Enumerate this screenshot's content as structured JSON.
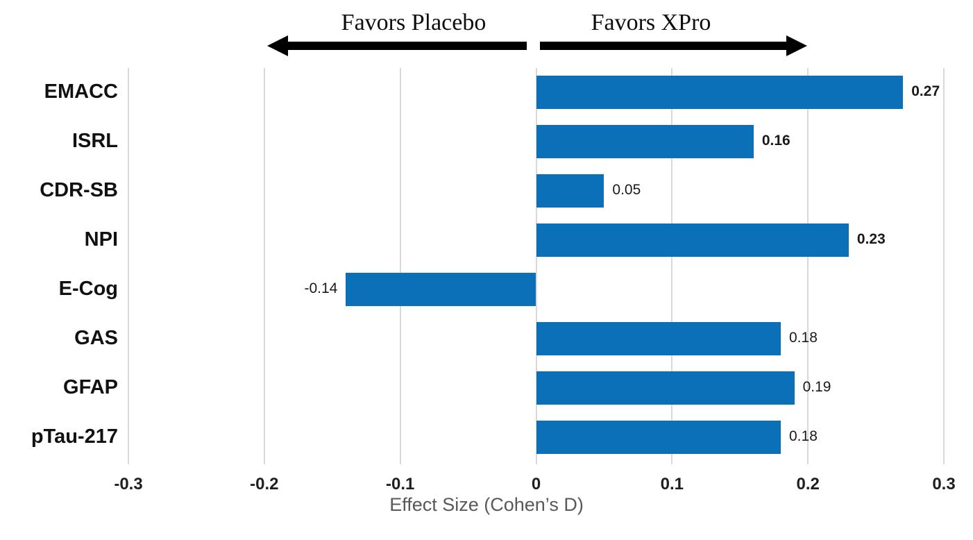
{
  "header": {
    "left_label": "Favors Placebo",
    "right_label": "Favors XPro"
  },
  "chart_data": {
    "type": "bar",
    "orientation": "horizontal",
    "title": "",
    "categories": [
      "EMACC",
      "ISRL",
      "CDR-SB",
      "NPI",
      "E-Cog",
      "GAS",
      "GFAP",
      "pTau-217"
    ],
    "values": [
      0.27,
      0.16,
      0.05,
      0.23,
      -0.14,
      0.18,
      0.19,
      0.18
    ],
    "value_labels": [
      "0.27",
      "0.16",
      "0.05",
      "0.23",
      "-0.14",
      "0.18",
      "0.19",
      "0.18"
    ],
    "value_label_bold": [
      true,
      true,
      false,
      true,
      false,
      false,
      false,
      false
    ],
    "xlabel": "Effect Size (Cohen’s D)",
    "xlim": [
      -0.3,
      0.3
    ],
    "xticks": [
      -0.3,
      -0.2,
      -0.1,
      0,
      0.1,
      0.2,
      0.3
    ],
    "xtick_labels": [
      "-0.3",
      "-0.2",
      "-0.1",
      "0",
      "0.1",
      "0.2",
      "0.3"
    ],
    "grid": true,
    "legend": false,
    "bar_color": "#0c70b8",
    "gridline_color": "#d9d9d9",
    "annotation_left": "Favors Placebo",
    "annotation_right": "Favors XPro"
  }
}
